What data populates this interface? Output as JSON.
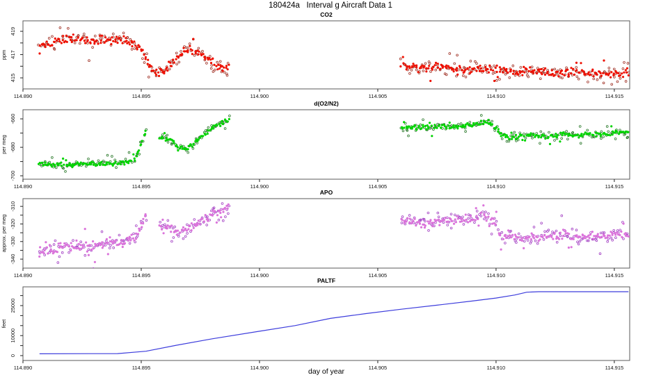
{
  "figure": {
    "title": "180424a   Interval g Aircraft Data 1",
    "xlabel": "day of year",
    "background": "#ffffff"
  },
  "x_axis": {
    "lim": [
      114.89,
      114.91565
    ],
    "ticks": [
      {
        "v": 114.89,
        "t": "114.890"
      },
      {
        "v": 114.895,
        "t": "114.895"
      },
      {
        "v": 114.9,
        "t": "114.900"
      },
      {
        "v": 114.905,
        "t": "114.905"
      },
      {
        "v": 114.91,
        "t": "114.910"
      },
      {
        "v": 114.915,
        "t": "114.915"
      }
    ]
  },
  "chart_data": [
    {
      "type": "scatter",
      "title": "CO2",
      "ylabel": "ppm",
      "ylim": [
        414.05,
        419.9
      ],
      "yticks": [
        {
          "v": 415,
          "t": "415"
        },
        {
          "v": 416,
          "t": ""
        },
        {
          "v": 417,
          "t": "417"
        },
        {
          "v": 418,
          "t": ""
        },
        {
          "v": 419,
          "t": "419"
        }
      ],
      "point_color": "#ee1000",
      "open_color": "#a03226",
      "series": [
        {
          "range": [
            114.8907,
            114.8987
          ],
          "n_fill": 175,
          "n_open": 125,
          "noise": 0.3,
          "anchors": [
            [
              114.8907,
              417.8
            ],
            [
              114.8912,
              418.1
            ],
            [
              114.892,
              418.3
            ],
            [
              114.893,
              418.2
            ],
            [
              114.894,
              418.3
            ],
            [
              114.8946,
              418.1
            ],
            [
              114.895,
              417.5
            ],
            [
              114.8953,
              416.2
            ],
            [
              114.8957,
              415.3
            ],
            [
              114.896,
              415.7
            ],
            [
              114.8964,
              416.6
            ],
            [
              114.8968,
              417.3
            ],
            [
              114.8971,
              417.5
            ],
            [
              114.8975,
              417.1
            ],
            [
              114.8979,
              416.5
            ],
            [
              114.8983,
              415.9
            ],
            [
              114.8985,
              415.7
            ],
            [
              114.8987,
              416.0
            ]
          ]
        },
        {
          "range": [
            114.906,
            114.9156
          ],
          "n_fill": 205,
          "n_open": 150,
          "noise": 0.28,
          "anchors": [
            [
              114.906,
              416.2
            ],
            [
              114.9066,
              415.8
            ],
            [
              114.9075,
              415.9
            ],
            [
              114.9085,
              415.7
            ],
            [
              114.9095,
              415.8
            ],
            [
              114.9105,
              415.6
            ],
            [
              114.911,
              415.4
            ],
            [
              114.9118,
              415.6
            ],
            [
              114.9125,
              415.4
            ],
            [
              114.9133,
              415.5
            ],
            [
              114.914,
              415.3
            ],
            [
              114.9148,
              415.4
            ],
            [
              114.9156,
              415.3
            ]
          ]
        }
      ]
    },
    {
      "type": "scatter",
      "title": "d(O2/N2)",
      "ylabel": "per meg",
      "ylim": [
        -702.4,
        -653.6
      ],
      "yticks": [
        {
          "v": -700,
          "t": "-700"
        },
        {
          "v": -690,
          "t": ""
        },
        {
          "v": -680,
          "t": "-680"
        },
        {
          "v": -670,
          "t": ""
        },
        {
          "v": -660,
          "t": "-660"
        }
      ],
      "point_color": "#00d400",
      "open_color": "#2d7a2d",
      "series": [
        {
          "range": [
            114.8907,
            114.8952
          ],
          "n_fill": 100,
          "n_open": 72,
          "noise": 1.3,
          "anchors": [
            [
              114.8907,
              -691.5
            ],
            [
              114.8915,
              -692.5
            ],
            [
              114.8925,
              -692
            ],
            [
              114.8935,
              -691.5
            ],
            [
              114.8943,
              -691
            ],
            [
              114.8947,
              -689
            ],
            [
              114.895,
              -678
            ],
            [
              114.8952,
              -668.5
            ]
          ]
        },
        {
          "range": [
            114.8958,
            114.8987
          ],
          "n_fill": 68,
          "n_open": 50,
          "noise": 1.3,
          "anchors": [
            [
              114.8958,
              -673
            ],
            [
              114.8962,
              -674.5
            ],
            [
              114.8966,
              -679.5
            ],
            [
              114.8969,
              -680.5
            ],
            [
              114.8973,
              -676
            ],
            [
              114.8977,
              -670
            ],
            [
              114.8981,
              -665.5
            ],
            [
              114.8985,
              -662.5
            ],
            [
              114.8987,
              -661.5
            ]
          ]
        },
        {
          "range": [
            114.906,
            114.9156
          ],
          "n_fill": 205,
          "n_open": 148,
          "noise": 1.4,
          "anchors": [
            [
              114.906,
              -665.5
            ],
            [
              114.9068,
              -666.5
            ],
            [
              114.9075,
              -665
            ],
            [
              114.9082,
              -666
            ],
            [
              114.9088,
              -664.5
            ],
            [
              114.9093,
              -663
            ],
            [
              114.9096,
              -661.5
            ],
            [
              114.9099,
              -665
            ],
            [
              114.9102,
              -671
            ],
            [
              114.9106,
              -674
            ],
            [
              114.911,
              -672
            ],
            [
              114.9116,
              -671.5
            ],
            [
              114.9122,
              -673
            ],
            [
              114.9128,
              -670.5
            ],
            [
              114.9134,
              -672
            ],
            [
              114.914,
              -670.5
            ],
            [
              114.9146,
              -671.5
            ],
            [
              114.9151,
              -669
            ],
            [
              114.9156,
              -670.5
            ]
          ]
        }
      ]
    },
    {
      "type": "scatter",
      "title": "APO",
      "ylabel": "approx. per meg",
      "ylim": [
        -345.1,
        -305.6
      ],
      "yticks": [
        {
          "v": -340,
          "t": "-340"
        },
        {
          "v": -335,
          "t": ""
        },
        {
          "v": -330,
          "t": "-330"
        },
        {
          "v": -325,
          "t": ""
        },
        {
          "v": -320,
          "t": "-320"
        },
        {
          "v": -315,
          "t": ""
        },
        {
          "v": -310,
          "t": "-310"
        }
      ],
      "point_color": "#db74db",
      "open_color": "#a442c4",
      "series": [
        {
          "range": [
            114.8907,
            114.8952
          ],
          "n_fill": 100,
          "n_open": 72,
          "noise": 2.3,
          "anchors": [
            [
              114.8907,
              -335.5
            ],
            [
              114.8915,
              -334
            ],
            [
              114.8922,
              -332.5
            ],
            [
              114.893,
              -332
            ],
            [
              114.8938,
              -330.5
            ],
            [
              114.8944,
              -330
            ],
            [
              114.8948,
              -326
            ],
            [
              114.8951,
              -318
            ],
            [
              114.8952,
              -315.5
            ]
          ]
        },
        {
          "range": [
            114.8958,
            114.8987
          ],
          "n_fill": 68,
          "n_open": 50,
          "noise": 2.0,
          "anchors": [
            [
              114.8958,
              -321
            ],
            [
              114.8962,
              -322.5
            ],
            [
              114.8966,
              -325
            ],
            [
              114.8969,
              -324
            ],
            [
              114.8973,
              -320
            ],
            [
              114.8977,
              -317
            ],
            [
              114.8981,
              -314
            ],
            [
              114.8985,
              -311.5
            ],
            [
              114.8987,
              -309.5
            ]
          ]
        },
        {
          "range": [
            114.906,
            114.9156
          ],
          "n_fill": 205,
          "n_open": 148,
          "noise": 2.0,
          "anchors": [
            [
              114.906,
              -318
            ],
            [
              114.9068,
              -319.5
            ],
            [
              114.9076,
              -318.5
            ],
            [
              114.9084,
              -317.5
            ],
            [
              114.909,
              -316.5
            ],
            [
              114.9095,
              -314.5
            ],
            [
              114.9099,
              -319
            ],
            [
              114.9102,
              -326
            ],
            [
              114.9107,
              -328.5
            ],
            [
              114.9112,
              -327
            ],
            [
              114.9118,
              -328
            ],
            [
              114.9124,
              -327.5
            ],
            [
              114.913,
              -326
            ],
            [
              114.9136,
              -328
            ],
            [
              114.9142,
              -326.5
            ],
            [
              114.9148,
              -327
            ],
            [
              114.9152,
              -324.5
            ],
            [
              114.9156,
              -326.5
            ]
          ]
        }
      ]
    },
    {
      "type": "line",
      "title": "PALTF",
      "ylabel": "feet",
      "ylim": [
        -2430,
        34375
      ],
      "yticks": [
        {
          "v": 0,
          "t": "0"
        },
        {
          "v": 5000,
          "t": ""
        },
        {
          "v": 10000,
          "t": "10000"
        },
        {
          "v": 15000,
          "t": ""
        },
        {
          "v": 20000,
          "t": ""
        },
        {
          "v": 25000,
          "t": "25000"
        },
        {
          "v": 30000,
          "t": ""
        }
      ],
      "line_color": "#3c3cdc",
      "points": [
        [
          114.8907,
          900
        ],
        [
          114.894,
          1000
        ],
        [
          114.8952,
          2200
        ],
        [
          114.8965,
          5200
        ],
        [
          114.898,
          8400
        ],
        [
          114.9,
          12200
        ],
        [
          114.9015,
          15000
        ],
        [
          114.903,
          18600
        ],
        [
          114.9045,
          21000
        ],
        [
          114.906,
          23200
        ],
        [
          114.9075,
          25200
        ],
        [
          114.909,
          27300
        ],
        [
          114.91,
          28800
        ],
        [
          114.9108,
          30300
        ],
        [
          114.9113,
          31700
        ],
        [
          114.9118,
          31950
        ],
        [
          114.9156,
          31950
        ]
      ]
    }
  ]
}
